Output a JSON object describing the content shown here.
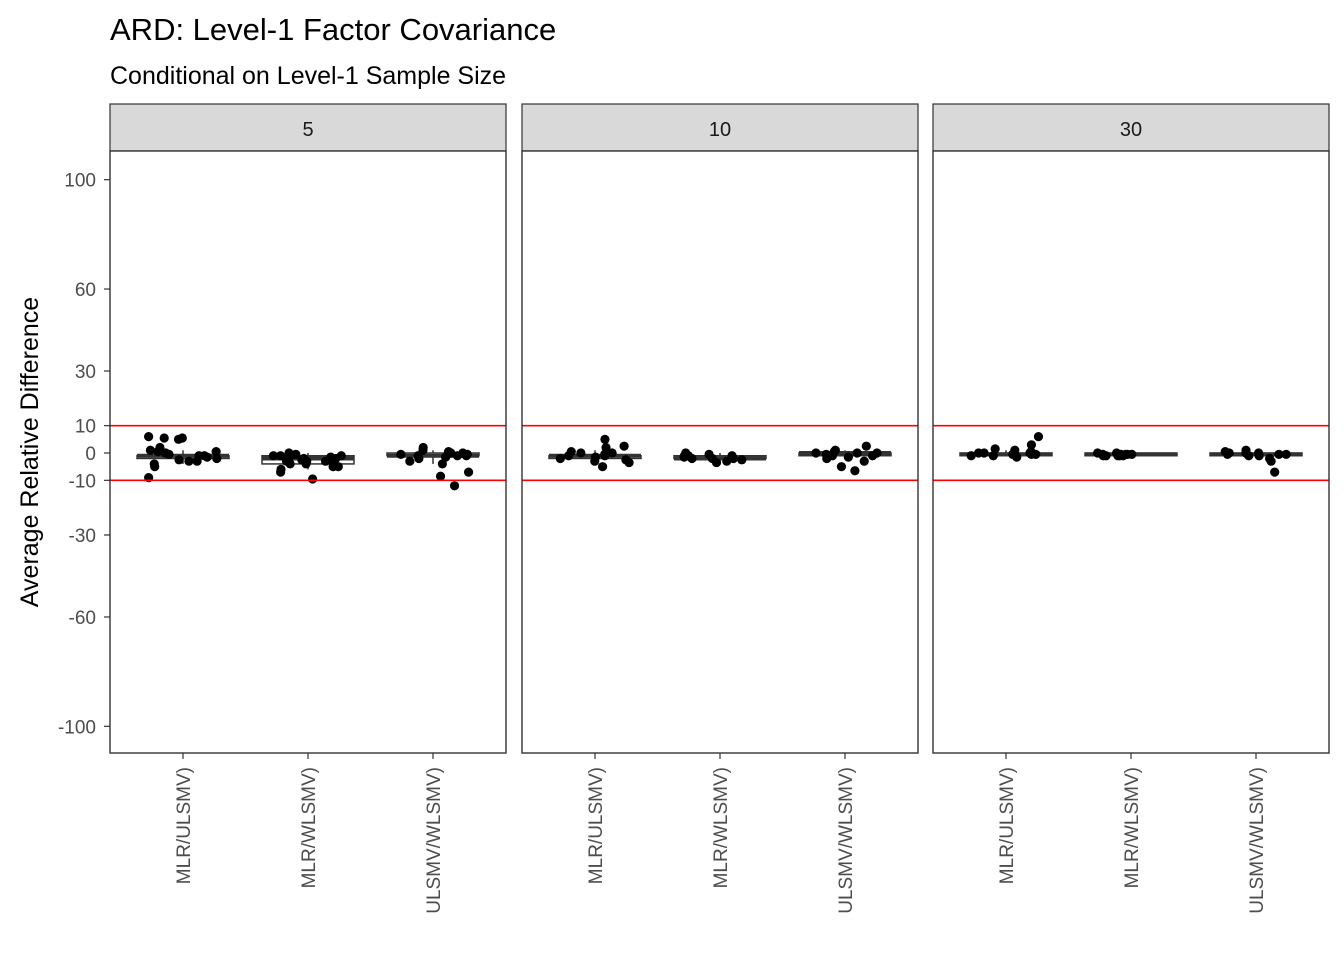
{
  "chart_data": {
    "type": "boxplot",
    "title": "ARD: Level-1 Factor Covariance",
    "subtitle": "Conditional on Level-1 Sample Size",
    "ylabel": "Average Relative Difference",
    "xlabel": "",
    "ylim": [
      -110,
      110
    ],
    "y_ticks": [
      100,
      60,
      30,
      10,
      0,
      -10,
      -30,
      -60,
      -100
    ],
    "reference_lines": [
      10,
      -10
    ],
    "reference_line_color": "#ff0000",
    "categories": [
      "MLR/ULSMV)",
      "MLR/WLSMV)",
      "ULSMV/WLSMV)"
    ],
    "grid": false,
    "facets": [
      {
        "label": "5",
        "boxes": [
          {
            "category": "MLR/ULSMV)",
            "min": -4,
            "q1": -2,
            "median": -1,
            "q3": -1,
            "max": 1
          },
          {
            "category": "MLR/WLSMV)",
            "min": -6,
            "q1": -4,
            "median": -2,
            "q3": -1,
            "max": 0
          },
          {
            "category": "ULSMV/WLSMV)",
            "min": -4,
            "q1": -1,
            "median": -1,
            "q3": 0,
            "max": 1
          }
        ],
        "points": [
          {
            "category": "MLR/ULSMV)",
            "values": [
              5,
              5.5,
              5.5,
              6,
              2,
              1,
              0.5,
              0,
              0,
              -0.5,
              -1,
              -1.5,
              -2,
              -2.5,
              -3,
              -3,
              -4,
              -5,
              -9,
              0.5,
              -1
            ]
          },
          {
            "category": "MLR/WLSMV)",
            "values": [
              0,
              -0.5,
              -1,
              -1,
              -1.5,
              -2,
              -2,
              -2.5,
              -3,
              -3,
              -3.5,
              -4,
              -4,
              -5,
              -5,
              -6,
              -7,
              -9.5,
              -1,
              -2,
              -3
            ]
          },
          {
            "category": "ULSMV/WLSMV)",
            "values": [
              2,
              1,
              0.5,
              0,
              0,
              -0.5,
              -0.5,
              -1,
              -1,
              -1.5,
              -2,
              -3,
              -4,
              -7,
              -8.5,
              -12,
              0,
              -1
            ]
          }
        ]
      },
      {
        "label": "10",
        "boxes": [
          {
            "category": "MLR/ULSMV)",
            "min": -3,
            "q1": -2,
            "median": -1,
            "q3": -1,
            "max": 1
          },
          {
            "category": "MLR/WLSMV)",
            "min": -3,
            "q1": -2,
            "median": -2,
            "q3": -1,
            "max": 0
          },
          {
            "category": "ULSMV/WLSMV)",
            "min": -2,
            "q1": -1,
            "median": 0,
            "q3": 0,
            "max": 1
          }
        ],
        "points": [
          {
            "category": "MLR/ULSMV)",
            "values": [
              5,
              2.5,
              2,
              0.5,
              0,
              -0.5,
              -1,
              -1.5,
              -2,
              -2.5,
              -3,
              -3.5,
              -5,
              -1,
              0
            ]
          },
          {
            "category": "MLR/WLSMV)",
            "values": [
              0,
              -0.5,
              -1,
              -1,
              -1.5,
              -2,
              -2,
              -2.5,
              -3,
              -3.5,
              -1,
              -2
            ]
          },
          {
            "category": "ULSMV/WLSMV)",
            "values": [
              2.5,
              1,
              0.5,
              0,
              0,
              -0.5,
              -1,
              -1.5,
              -2,
              -3,
              -5,
              -6.5,
              0,
              -1
            ]
          }
        ]
      },
      {
        "label": "30",
        "boxes": [
          {
            "category": "MLR/ULSMV)",
            "min": -1,
            "q1": -1,
            "median": -0.5,
            "q3": 0,
            "max": 1
          },
          {
            "category": "MLR/WLSMV)",
            "min": -1,
            "q1": -1,
            "median": -0.5,
            "q3": 0,
            "max": 0
          },
          {
            "category": "ULSMV/WLSMV)",
            "min": -1,
            "q1": -1,
            "median": -0.5,
            "q3": 0,
            "max": 1
          }
        ],
        "points": [
          {
            "category": "MLR/ULSMV)",
            "values": [
              6,
              3,
              1.5,
              1,
              0.5,
              0,
              0,
              -0.5,
              -0.5,
              -1,
              -1,
              -1.5,
              0,
              -0.5
            ]
          },
          {
            "category": "MLR/WLSMV)",
            "values": [
              0,
              -0.5,
              -0.5,
              -1,
              -1,
              -1,
              -0.5,
              0,
              -0.5,
              -1,
              -0.5,
              -1
            ]
          },
          {
            "category": "ULSMV/WLSMV)",
            "values": [
              1,
              0.5,
              0,
              0,
              -0.5,
              -0.5,
              -1,
              -1,
              -2,
              -3,
              -7,
              0,
              -0.5
            ]
          }
        ]
      }
    ]
  }
}
